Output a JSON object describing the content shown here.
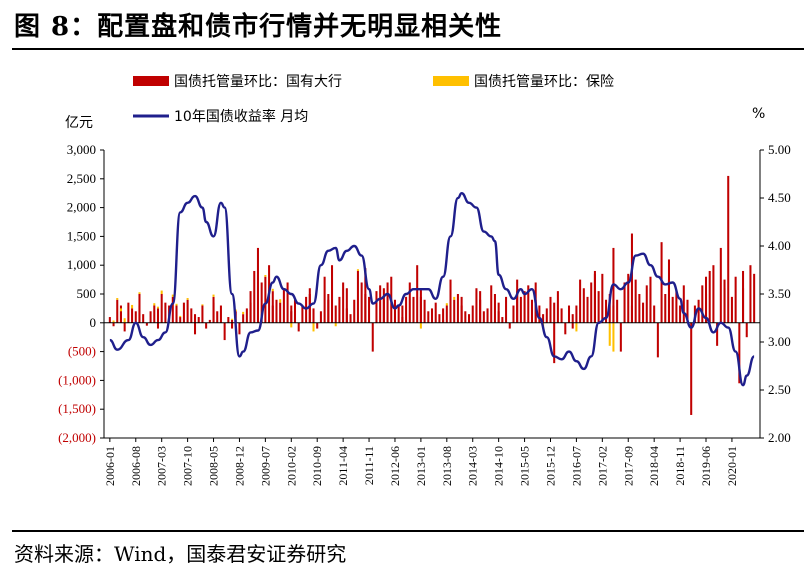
{
  "header": {
    "title": "图 8：配置盘和债市行情并无明显相关性"
  },
  "footer": {
    "source": "资料来源：Wind，国泰君安证券研究"
  },
  "chart_data": {
    "type": "bar+line",
    "title": "配置盘和债市行情并无明显相关性",
    "left_axis": {
      "unit": "亿元",
      "ylim": [
        -2000,
        3000
      ],
      "ticks": [
        3000,
        2500,
        2000,
        1500,
        1000,
        500,
        0,
        -500,
        -1000,
        -1500,
        -2000
      ],
      "tick_labels": [
        "3,000",
        "2,500",
        "2,000",
        "1,500",
        "1,000",
        "500",
        "0",
        "(500)",
        "(1,000)",
        "(1,500)",
        "(2,000)"
      ]
    },
    "right_axis": {
      "unit": "%",
      "ylim": [
        2.0,
        5.0
      ],
      "ticks": [
        5.0,
        4.5,
        4.0,
        3.5,
        3.0,
        2.5,
        2.0
      ],
      "tick_labels": [
        "5.00",
        "4.50",
        "4.00",
        "3.50",
        "3.00",
        "2.50",
        "2.00"
      ]
    },
    "x_ticks": [
      "2006-01",
      "2006-08",
      "2007-03",
      "2007-10",
      "2008-05",
      "2008-12",
      "2009-07",
      "2010-02",
      "2010-09",
      "2011-04",
      "2011-11",
      "2012-06",
      "2013-01",
      "2013-08",
      "2014-03",
      "2014-10",
      "2015-05",
      "2015-12",
      "2016-07",
      "2017-02",
      "2017-09",
      "2018-04",
      "2018-11",
      "2019-06",
      "2020-01"
    ],
    "legend": {
      "bank": "国债托管量环比：国有大行",
      "insurance": "国债托管量环比：保险",
      "yield": "10年国债收益率 月均"
    },
    "colors": {
      "bank": "#c00000",
      "insurance": "#ffc000",
      "yield": "#1f1f8c"
    },
    "series_bank": [
      100,
      -60,
      400,
      300,
      200,
      -150,
      350,
      250,
      200,
      500,
      300,
      150,
      -50,
      200,
      300,
      -100,
      250,
      500,
      350,
      300,
      450,
      200,
      300,
      100,
      350,
      400,
      250,
      150,
      -200,
      100,
      300,
      -100,
      50,
      450,
      350,
      200,
      300,
      -300,
      100,
      -100,
      50,
      200,
      -200,
      150,
      250,
      550,
      350,
      900,
      1300,
      700,
      800,
      1000,
      550,
      300,
      400,
      350,
      600,
      700,
      300,
      200,
      400,
      -150,
      300,
      450,
      600,
      500,
      250,
      -100,
      200,
      800,
      400,
      500,
      1000,
      300,
      450,
      700,
      600,
      250,
      150,
      400,
      900,
      700,
      950,
      500,
      450,
      -500,
      550,
      650,
      400,
      600,
      700,
      800,
      400,
      300,
      100,
      300,
      450,
      700,
      450,
      1000,
      450,
      600,
      400,
      200,
      250,
      350,
      150,
      50,
      250,
      300,
      750,
      400,
      500,
      450,
      300,
      200,
      150,
      300,
      600,
      400,
      550,
      200,
      250,
      650,
      500,
      350,
      200,
      100,
      450,
      -100,
      300,
      750,
      550,
      450,
      550,
      650,
      400,
      700,
      400,
      300,
      150,
      250,
      450,
      -700,
      350,
      550,
      250,
      -200,
      300,
      150,
      -100,
      300,
      750,
      600,
      450,
      700,
      850,
      900,
      550,
      850,
      400,
      500,
      300,
      1300,
      400,
      -500,
      700,
      850,
      300,
      1550,
      750,
      500,
      350,
      650,
      600,
      800,
      300,
      -600,
      1400,
      500,
      750,
      1100,
      450,
      550,
      300,
      650,
      150,
      400,
      -1600,
      300,
      400,
      650,
      500,
      800,
      900,
      1000,
      -400,
      1300,
      750,
      600,
      2550,
      450,
      800,
      -1050,
      900,
      600,
      -250,
      1000,
      850
    ],
    "series_insurance": [
      0,
      40,
      30,
      0,
      50,
      80,
      0,
      60,
      0,
      30,
      0,
      0,
      0,
      0,
      40,
      0,
      30,
      60,
      0,
      0,
      40,
      0,
      30,
      20,
      0,
      30,
      0,
      0,
      0,
      0,
      20,
      0,
      0,
      40,
      0,
      0,
      0,
      0,
      0,
      0,
      20,
      30,
      0,
      40,
      0,
      0,
      0,
      0,
      0,
      0,
      30,
      0,
      40,
      0,
      0,
      60,
      0,
      0,
      0,
      -80,
      0,
      0,
      0,
      0,
      0,
      0,
      -150,
      0,
      0,
      0,
      0,
      0,
      0,
      -60,
      0,
      0,
      0,
      0,
      0,
      0,
      30,
      0,
      0,
      0,
      0,
      0,
      0,
      0,
      0,
      0,
      0,
      0,
      0,
      0,
      0,
      0,
      0,
      0,
      0,
      0,
      0,
      -100,
      0,
      0,
      0,
      0,
      0,
      0,
      0,
      40,
      0,
      50,
      0,
      0,
      0,
      0,
      0,
      0,
      0,
      0,
      0,
      0,
      0,
      0,
      0,
      0,
      0,
      0,
      0,
      0,
      0,
      0,
      0,
      0,
      0,
      0,
      0,
      0,
      0,
      0,
      -100,
      0,
      0,
      0,
      0,
      0,
      0,
      0,
      0,
      0,
      0,
      -150,
      0,
      0,
      0,
      0,
      0,
      0,
      0,
      0,
      0,
      -400,
      -500,
      0,
      0,
      0,
      0,
      0,
      0,
      0,
      0,
      0,
      0,
      0,
      0,
      0,
      0,
      0,
      0,
      0,
      0,
      0,
      0,
      0,
      0,
      0,
      0,
      0,
      0,
      0,
      0,
      0,
      0,
      0,
      0,
      0,
      0,
      0,
      0,
      0,
      0,
      0,
      0,
      0,
      0,
      0,
      0,
      0,
      0,
      0,
      0,
      0,
      0,
      0,
      0,
      0
    ],
    "yield_points": [
      [
        "2006-01",
        3.02
      ],
      [
        "2006-03",
        2.92
      ],
      [
        "2006-06",
        3.02
      ],
      [
        "2006-08",
        3.2
      ],
      [
        "2006-10",
        3.05
      ],
      [
        "2006-12",
        2.97
      ],
      [
        "2007-02",
        3.02
      ],
      [
        "2007-04",
        3.1
      ],
      [
        "2007-06",
        3.4
      ],
      [
        "2007-08",
        4.35
      ],
      [
        "2007-10",
        4.45
      ],
      [
        "2007-12",
        4.52
      ],
      [
        "2008-02",
        4.4
      ],
      [
        "2008-03",
        4.25
      ],
      [
        "2008-05",
        4.1
      ],
      [
        "2008-07",
        4.45
      ],
      [
        "2008-08",
        4.4
      ],
      [
        "2008-10",
        3.5
      ],
      [
        "2008-12",
        2.85
      ],
      [
        "2009-01",
        2.9
      ],
      [
        "2009-03",
        3.1
      ],
      [
        "2009-05",
        3.12
      ],
      [
        "2009-07",
        3.4
      ],
      [
        "2009-09",
        3.62
      ],
      [
        "2009-10",
        3.68
      ],
      [
        "2009-12",
        3.55
      ],
      [
        "2010-02",
        3.5
      ],
      [
        "2010-04",
        3.4
      ],
      [
        "2010-06",
        3.35
      ],
      [
        "2010-08",
        3.4
      ],
      [
        "2010-10",
        3.8
      ],
      [
        "2010-12",
        3.95
      ],
      [
        "2011-02",
        3.98
      ],
      [
        "2011-03",
        3.85
      ],
      [
        "2011-05",
        3.95
      ],
      [
        "2011-07",
        4.0
      ],
      [
        "2011-09",
        3.9
      ],
      [
        "2011-11",
        3.55
      ],
      [
        "2011-12",
        3.4
      ],
      [
        "2012-02",
        3.45
      ],
      [
        "2012-04",
        3.5
      ],
      [
        "2012-06",
        3.35
      ],
      [
        "2012-07",
        3.38
      ],
      [
        "2012-09",
        3.5
      ],
      [
        "2012-11",
        3.55
      ],
      [
        "2013-01",
        3.55
      ],
      [
        "2013-03",
        3.55
      ],
      [
        "2013-05",
        3.45
      ],
      [
        "2013-07",
        3.68
      ],
      [
        "2013-09",
        4.1
      ],
      [
        "2013-11",
        4.5
      ],
      [
        "2013-12",
        4.55
      ],
      [
        "2014-02",
        4.45
      ],
      [
        "2014-04",
        4.4
      ],
      [
        "2014-06",
        4.15
      ],
      [
        "2014-08",
        4.1
      ],
      [
        "2014-09",
        4.05
      ],
      [
        "2014-10",
        3.7
      ],
      [
        "2014-12",
        3.55
      ],
      [
        "2015-02",
        3.45
      ],
      [
        "2015-04",
        3.55
      ],
      [
        "2015-05",
        3.5
      ],
      [
        "2015-07",
        3.55
      ],
      [
        "2015-09",
        3.25
      ],
      [
        "2015-11",
        3.05
      ],
      [
        "2016-01",
        2.85
      ],
      [
        "2016-03",
        2.82
      ],
      [
        "2016-05",
        2.9
      ],
      [
        "2016-07",
        2.8
      ],
      [
        "2016-09",
        2.72
      ],
      [
        "2016-11",
        2.85
      ],
      [
        "2017-01",
        3.2
      ],
      [
        "2017-03",
        3.25
      ],
      [
        "2017-05",
        3.6
      ],
      [
        "2017-07",
        3.55
      ],
      [
        "2017-09",
        3.62
      ],
      [
        "2017-11",
        3.9
      ],
      [
        "2018-01",
        3.92
      ],
      [
        "2018-03",
        3.8
      ],
      [
        "2018-05",
        3.68
      ],
      [
        "2018-07",
        3.6
      ],
      [
        "2018-09",
        3.62
      ],
      [
        "2018-11",
        3.45
      ],
      [
        "2018-12",
        3.3
      ],
      [
        "2019-02",
        3.15
      ],
      [
        "2019-04",
        3.35
      ],
      [
        "2019-06",
        3.25
      ],
      [
        "2019-08",
        3.1
      ],
      [
        "2019-10",
        3.2
      ],
      [
        "2019-12",
        3.15
      ],
      [
        "2020-02",
        2.9
      ],
      [
        "2020-04",
        2.55
      ],
      [
        "2020-05",
        2.65
      ],
      [
        "2020-07",
        2.85
      ]
    ]
  }
}
